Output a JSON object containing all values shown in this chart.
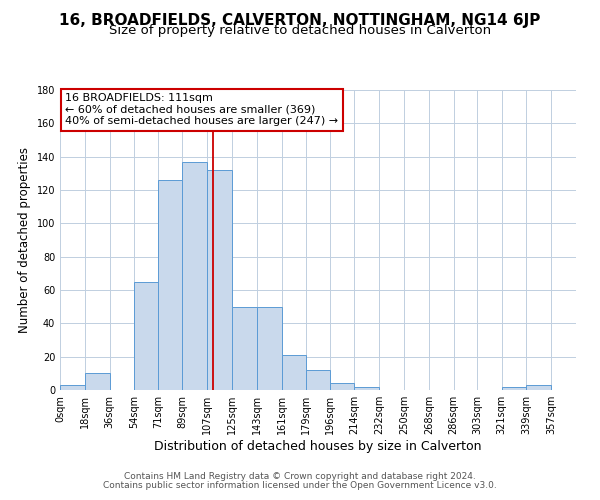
{
  "title": "16, BROADFIELDS, CALVERTON, NOTTINGHAM, NG14 6JP",
  "subtitle": "Size of property relative to detached houses in Calverton",
  "xlabel": "Distribution of detached houses by size in Calverton",
  "ylabel": "Number of detached properties",
  "footer1": "Contains HM Land Registry data © Crown copyright and database right 2024.",
  "footer2": "Contains public sector information licensed under the Open Government Licence v3.0.",
  "bar_left_edges": [
    0,
    18,
    36,
    54,
    71,
    89,
    107,
    125,
    143,
    161,
    179,
    196,
    214,
    232,
    250,
    268,
    286,
    303,
    321,
    339
  ],
  "bar_heights": [
    3,
    10,
    0,
    65,
    126,
    137,
    132,
    50,
    50,
    21,
    12,
    4,
    2,
    0,
    0,
    0,
    0,
    0,
    2,
    3
  ],
  "bar_widths": [
    18,
    18,
    18,
    17,
    18,
    18,
    18,
    18,
    18,
    18,
    17,
    18,
    18,
    18,
    18,
    18,
    17,
    18,
    18,
    18
  ],
  "tick_labels": [
    "0sqm",
    "18sqm",
    "36sqm",
    "54sqm",
    "71sqm",
    "89sqm",
    "107sqm",
    "125sqm",
    "143sqm",
    "161sqm",
    "179sqm",
    "196sqm",
    "214sqm",
    "232sqm",
    "250sqm",
    "268sqm",
    "286sqm",
    "303sqm",
    "321sqm",
    "339sqm",
    "357sqm"
  ],
  "tick_positions": [
    0,
    18,
    36,
    54,
    71,
    89,
    107,
    125,
    143,
    161,
    179,
    196,
    214,
    232,
    250,
    268,
    286,
    303,
    321,
    339,
    357
  ],
  "ylim": [
    0,
    180
  ],
  "xlim": [
    0,
    375
  ],
  "bar_face_color": "#c9d9ec",
  "bar_edge_color": "#5b9bd5",
  "vline_x": 111,
  "vline_color": "#cc0000",
  "annotation_line1": "16 BROADFIELDS: 111sqm",
  "annotation_line2": "← 60% of detached houses are smaller (369)",
  "annotation_line3": "40% of semi-detached houses are larger (247) →",
  "annotation_box_color": "#cc0000",
  "bg_color": "#ffffff",
  "grid_color": "#c0cfe0",
  "title_fontsize": 11,
  "subtitle_fontsize": 9.5,
  "xlabel_fontsize": 9,
  "ylabel_fontsize": 8.5,
  "tick_fontsize": 7,
  "footer_fontsize": 6.5,
  "ann_fontsize": 8
}
